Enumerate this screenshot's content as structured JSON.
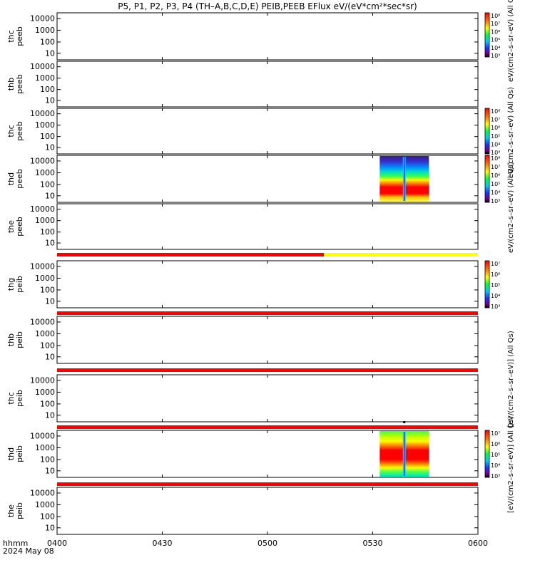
{
  "title": "P5, P1, P2, P3, P4 (TH–A,B,C,D,E) PEIB,PEEB EFlux eV/(eV*cm²*sec*sr)",
  "x_axis": {
    "label_line1": "hhmm",
    "label_line2": "2024 May 08",
    "ticks": [
      "0400",
      "0430",
      "0500",
      "0530",
      "0600"
    ]
  },
  "colorbar_labels": {
    "peeb": "eV/(cm2–s–sr–eV) (All Qs)",
    "peib": "[eV/(cm2–s–sr–eV)] (All Qs)"
  },
  "colors": {
    "red": "#ff0000",
    "yellow": "#ffff00",
    "black": "#000000"
  },
  "chart_data": [
    {
      "type": "heatmap",
      "ylabel": [
        "thc",
        "peeb"
      ],
      "y_ticks": [
        "10000",
        "1000",
        "100",
        "10"
      ],
      "has_data": false,
      "colorbar": {
        "ticks": [
          "10⁸",
          "10⁷",
          "10⁶",
          "10⁵",
          "10⁴",
          "10³"
        ]
      }
    },
    {
      "type": "heatmap",
      "ylabel": [
        "thb",
        "peeb"
      ],
      "y_ticks": [
        "10000",
        "1000",
        "100",
        "10"
      ],
      "has_data": false
    },
    {
      "type": "heatmap",
      "ylabel": [
        "thc",
        "peeb"
      ],
      "y_ticks": [
        "10000",
        "1000",
        "100",
        "10"
      ],
      "has_data": false,
      "colorbar": {
        "ticks": [
          "10⁸",
          "10⁷",
          "10⁶",
          "10⁵",
          "10⁴",
          "10³"
        ]
      }
    },
    {
      "type": "heatmap",
      "ylabel": [
        "thd",
        "peeb"
      ],
      "y_ticks": [
        "10000",
        "1000",
        "100",
        "10"
      ],
      "has_data": true,
      "data_time_range": [
        "0532",
        "0546"
      ],
      "spike_time": "0539",
      "colorbar": {
        "ticks": [
          "10⁸",
          "10⁷",
          "10⁶",
          "10⁵",
          "10⁴",
          "10³"
        ]
      }
    },
    {
      "type": "heatmap",
      "ylabel": [
        "the",
        "peeb"
      ],
      "y_ticks": [
        "10000",
        "1000",
        "100",
        "10"
      ],
      "has_data": false
    },
    {
      "type": "heatmap",
      "ylabel": [
        "thg",
        "peib"
      ],
      "y_ticks": [
        "10000",
        "1000",
        "100",
        "10"
      ],
      "has_data": false,
      "colorbar": {
        "ticks": [
          "10⁷",
          "10⁶",
          "10⁵",
          "10⁴",
          "10³"
        ]
      }
    },
    {
      "type": "heatmap",
      "ylabel": [
        "thb",
        "peib"
      ],
      "y_ticks": [
        "10000",
        "1000",
        "100",
        "10"
      ],
      "has_data": false
    },
    {
      "type": "heatmap",
      "ylabel": [
        "thc",
        "peib"
      ],
      "y_ticks": [
        "10000",
        "1000",
        "100",
        "10"
      ],
      "has_data": false
    },
    {
      "type": "heatmap",
      "ylabel": [
        "thd",
        "peib"
      ],
      "y_ticks": [
        "10000",
        "1000",
        "100",
        "10"
      ],
      "has_data": true,
      "data_time_range": [
        "0532",
        "0546"
      ],
      "spike_time": "0539",
      "colorbar": {
        "ticks": [
          "10⁷",
          "10⁶",
          "10⁵",
          "10⁴",
          "10³"
        ]
      }
    },
    {
      "type": "heatmap",
      "ylabel": [
        "the",
        "peib"
      ],
      "y_ticks": [
        "10000",
        "1000",
        "100",
        "10"
      ],
      "has_data": false
    }
  ]
}
